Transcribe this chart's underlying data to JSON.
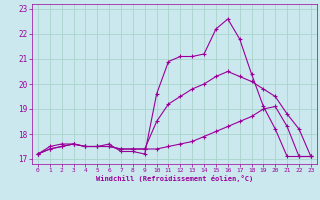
{
  "xlabel": "Windchill (Refroidissement éolien,°C)",
  "xlim": [
    -0.5,
    23.5
  ],
  "ylim": [
    16.8,
    23.2
  ],
  "yticks": [
    17,
    18,
    19,
    20,
    21,
    22,
    23
  ],
  "xticks": [
    0,
    1,
    2,
    3,
    4,
    5,
    6,
    7,
    8,
    9,
    10,
    11,
    12,
    13,
    14,
    15,
    16,
    17,
    18,
    19,
    20,
    21,
    22,
    23
  ],
  "background_color": "#cce8ef",
  "grid_color": "#aad4cc",
  "line_color": "#990099",
  "line1_x": [
    0,
    1,
    2,
    3,
    4,
    5,
    6,
    7,
    8,
    9,
    10,
    11,
    12,
    13,
    14,
    15,
    16,
    17,
    18,
    19,
    20,
    21,
    22,
    23
  ],
  "line1_y": [
    17.2,
    17.5,
    17.6,
    17.6,
    17.5,
    17.5,
    17.6,
    17.3,
    17.3,
    17.2,
    19.6,
    20.9,
    21.1,
    21.1,
    21.2,
    22.2,
    22.6,
    21.8,
    20.4,
    19.1,
    18.2,
    17.1,
    17.1,
    17.1
  ],
  "line2_x": [
    0,
    1,
    2,
    3,
    4,
    5,
    6,
    7,
    8,
    9,
    10,
    11,
    12,
    13,
    14,
    15,
    16,
    17,
    18,
    19,
    20,
    21,
    22,
    23
  ],
  "line2_y": [
    17.2,
    17.4,
    17.5,
    17.6,
    17.5,
    17.5,
    17.5,
    17.4,
    17.4,
    17.4,
    17.4,
    17.5,
    17.6,
    17.7,
    17.9,
    18.1,
    18.3,
    18.5,
    18.7,
    19.0,
    19.1,
    18.3,
    17.1,
    17.1
  ],
  "line3_x": [
    0,
    1,
    2,
    3,
    4,
    5,
    6,
    7,
    8,
    9,
    10,
    11,
    12,
    13,
    14,
    15,
    16,
    17,
    18,
    19,
    20,
    21,
    22,
    23
  ],
  "line3_y": [
    17.2,
    17.4,
    17.5,
    17.6,
    17.5,
    17.5,
    17.5,
    17.4,
    17.4,
    17.4,
    18.5,
    19.2,
    19.5,
    19.8,
    20.0,
    20.3,
    20.5,
    20.3,
    20.1,
    19.8,
    19.5,
    18.8,
    18.2,
    17.1
  ]
}
